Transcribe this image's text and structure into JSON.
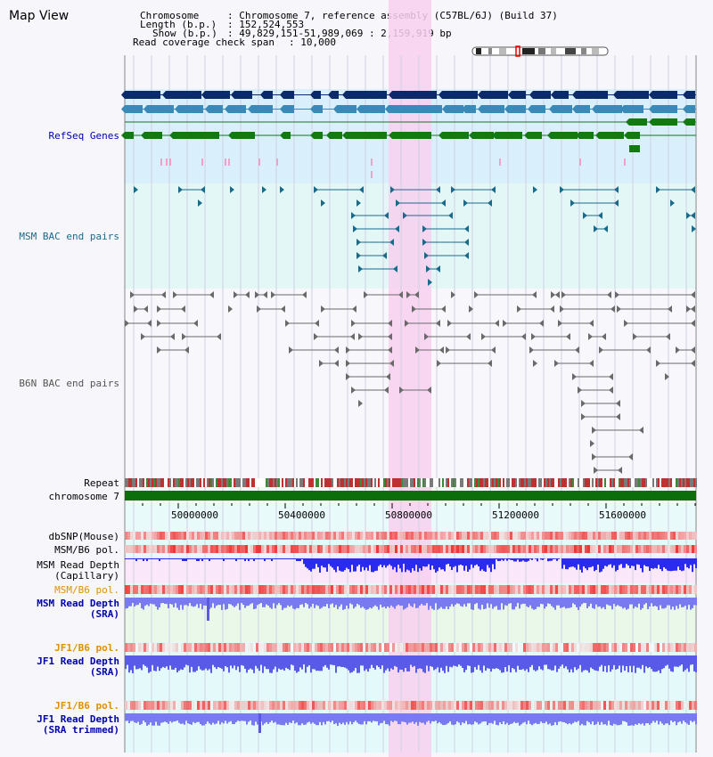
{
  "title": "Map View",
  "info": {
    "chromosome_key": "Chromosome",
    "chromosome_val": ": Chromosome 7, reference assembly (C57BL/6J) (Build 37)",
    "length_key": "Length (b.p.)",
    "length_val": ": 152,524,553",
    "show_key": "Show (b.p.)",
    "show_val": ": 49,829,151-51,989,069 : 2,159,919 bp",
    "span_key": "Read coverage check span",
    "span_val": ": 10,000"
  },
  "tracks": {
    "refseq": "RefSeq Genes",
    "msm_bac": "MSM BAC end pairs",
    "b6n_bac": "B6N BAC end pairs",
    "repeat": "Repeat",
    "chrom": "chromosome 7",
    "dbsnp": "dbSNP(Mouse)",
    "msm_b6_pol_1": "MSM/B6 pol.",
    "msm_read_cap_1": "MSM Read Depth",
    "msm_read_cap_2": "(Capillary)",
    "msm_b6_pol_2": "MSM/B6 pol.",
    "msm_read_sra_1": "MSM Read Depth",
    "msm_read_sra_2": "(SRA)",
    "jf1_b6_pol_1": "JF1/B6 pol.",
    "jf1_read_sra_1": "JF1 Read Depth",
    "jf1_read_sra_2": "(SRA)",
    "jf1_b6_pol_2": "JF1/B6 pol.",
    "jf1_read_trim_1": "JF1 Read Depth",
    "jf1_read_trim_2": "(SRA trimmed)"
  },
  "axis_ticks": [
    "50000000",
    "50400000",
    "50800000",
    "51200000",
    "51600000"
  ],
  "colors": {
    "refseq_bg": "#d9effb",
    "bac_bg": "#e4f7f7",
    "highlight": "#f8d0f0",
    "gene_dark": "#0a2a6a",
    "gene_mid": "#3a8ab8",
    "gene_green": "#117a11",
    "msm_bac": "#1a6a8a",
    "b6n_bac": "#6a6a6a",
    "chrom_bar": "#0b6e0b",
    "depth_blue": "#2a2af0",
    "label_blue": "#0000aa",
    "label_orange": "#e09000"
  }
}
